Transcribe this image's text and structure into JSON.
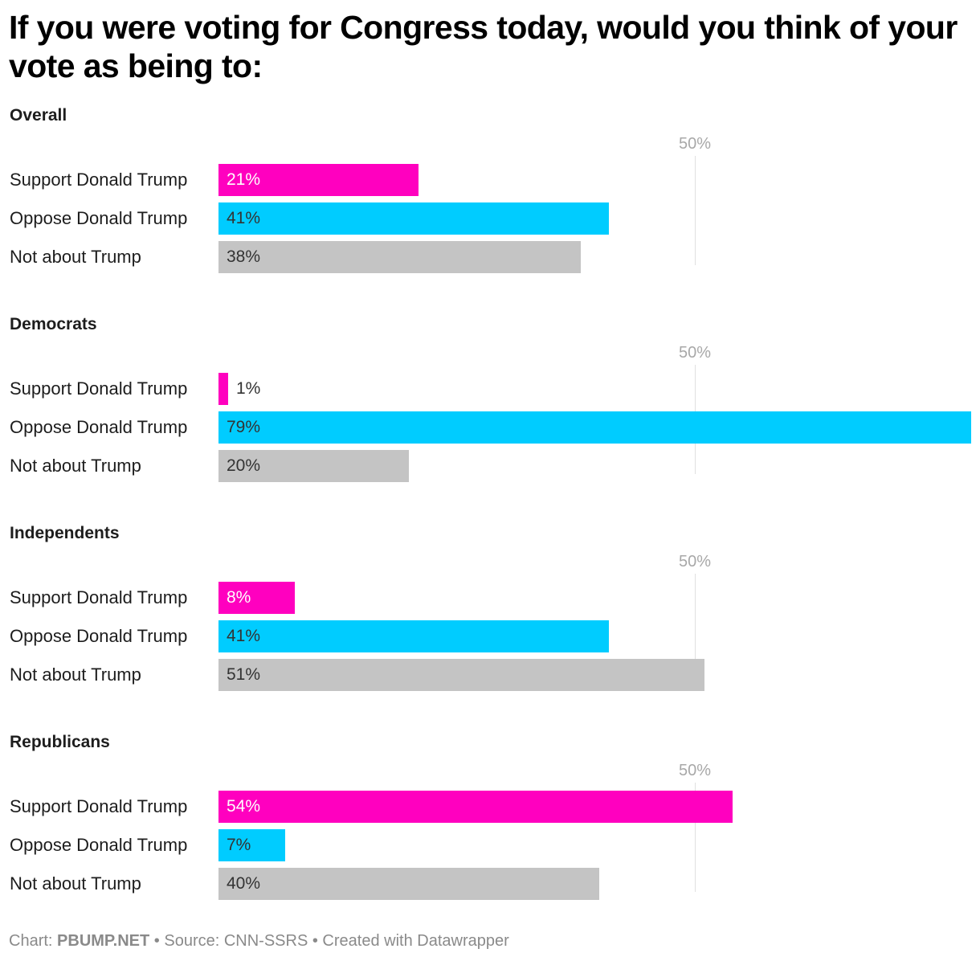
{
  "title": "If you were voting for Congress today, would you think of your vote as being to:",
  "colors": {
    "support": "#ff00bf",
    "oppose": "#00ccff",
    "not_about": "#c4c4c4",
    "gridline": "#e0e0e0",
    "tick_label": "#a8a8a8"
  },
  "footer": {
    "chart_prefix": "Chart: ",
    "chart_credit": "PBUMP.NET",
    "rest": " • Source: CNN-SSRS • Created with Datawrapper"
  },
  "panels": [
    {
      "title": "Overall",
      "tick": "50%",
      "rows": [
        {
          "label": "Support Donald Trump",
          "value": 21,
          "display": "21%"
        },
        {
          "label": "Oppose Donald Trump",
          "value": 41,
          "display": "41%"
        },
        {
          "label": "Not about Trump",
          "value": 38,
          "display": "38%"
        }
      ]
    },
    {
      "title": "Democrats",
      "tick": "50%",
      "rows": [
        {
          "label": "Support Donald Trump",
          "value": 1,
          "display": "1%"
        },
        {
          "label": "Oppose Donald Trump",
          "value": 79,
          "display": "79%"
        },
        {
          "label": "Not about Trump",
          "value": 20,
          "display": "20%"
        }
      ]
    },
    {
      "title": "Independents",
      "tick": "50%",
      "rows": [
        {
          "label": "Support Donald Trump",
          "value": 8,
          "display": "8%"
        },
        {
          "label": "Oppose Donald Trump",
          "value": 41,
          "display": "41%"
        },
        {
          "label": "Not about Trump",
          "value": 51,
          "display": "51%"
        }
      ]
    },
    {
      "title": "Republicans",
      "tick": "50%",
      "rows": [
        {
          "label": "Support Donald Trump",
          "value": 54,
          "display": "54%"
        },
        {
          "label": "Oppose Donald Trump",
          "value": 7,
          "display": "7%"
        },
        {
          "label": "Not about Trump",
          "value": 40,
          "display": "40%"
        }
      ]
    }
  ],
  "chart_data": {
    "type": "bar",
    "orientation": "horizontal",
    "title": "If you were voting for Congress today, would you think of your vote as being to:",
    "categories": [
      "Support Donald Trump",
      "Oppose Donald Trump",
      "Not about Trump"
    ],
    "groups": [
      "Overall",
      "Democrats",
      "Independents",
      "Republicans"
    ],
    "series": [
      {
        "name": "Overall",
        "values": [
          21,
          41,
          38
        ]
      },
      {
        "name": "Democrats",
        "values": [
          1,
          79,
          20
        ]
      },
      {
        "name": "Independents",
        "values": [
          8,
          41,
          51
        ]
      },
      {
        "name": "Republicans",
        "values": [
          54,
          7,
          40
        ]
      }
    ],
    "bar_colors": [
      "#ff00bf",
      "#00ccff",
      "#c4c4c4"
    ],
    "reference_line": {
      "value": 50,
      "label": "50%"
    },
    "xlabel": "",
    "ylabel": "",
    "unit": "%",
    "xlim": [
      0,
      79
    ],
    "source": "CNN-SSRS",
    "credit": "PBUMP.NET"
  }
}
